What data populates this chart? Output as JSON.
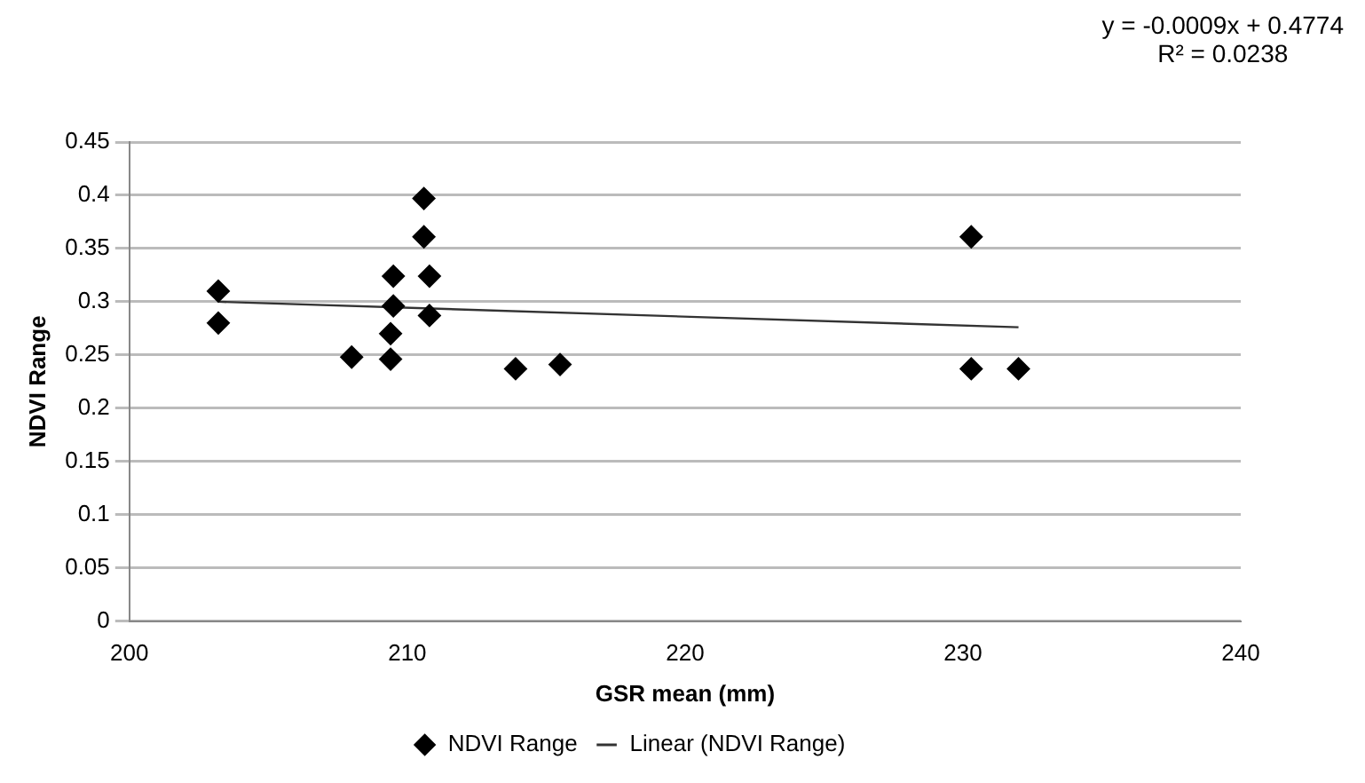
{
  "chart_data": {
    "type": "scatter",
    "xlabel": "GSR mean (mm)",
    "ylabel": "NDVI Range",
    "annotations": [
      "y = -0.0009x + 0.4774",
      "R² = 0.0238"
    ],
    "xlim": [
      200,
      240
    ],
    "xticks": [
      200,
      210,
      220,
      230,
      240
    ],
    "ylim": [
      0,
      0.45
    ],
    "yticks": [
      0,
      0.05,
      0.1,
      0.15,
      0.2,
      0.25,
      0.3,
      0.35,
      0.4,
      0.45
    ],
    "grid": "y",
    "legend": "bottom",
    "marker": "diamond",
    "series": [
      {
        "name": "NDVI Range",
        "color": "#000000",
        "x": [
          203.2,
          203.2,
          208.0,
          209.4,
          209.4,
          209.5,
          209.5,
          210.6,
          210.6,
          210.8,
          210.8,
          213.9,
          215.5,
          230.3,
          230.3,
          232.0
        ],
        "values": [
          0.31,
          0.28,
          0.248,
          0.246,
          0.27,
          0.296,
          0.324,
          0.397,
          0.361,
          0.324,
          0.287,
          0.237,
          0.241,
          0.361,
          0.237,
          0.237
        ]
      },
      {
        "name": "Linear (NDVI Range)",
        "type": "line",
        "color": "#333333",
        "x": [
          203.2,
          232.0
        ],
        "values": [
          0.3,
          0.276
        ],
        "marker": "none",
        "line_style": "solid"
      }
    ]
  }
}
